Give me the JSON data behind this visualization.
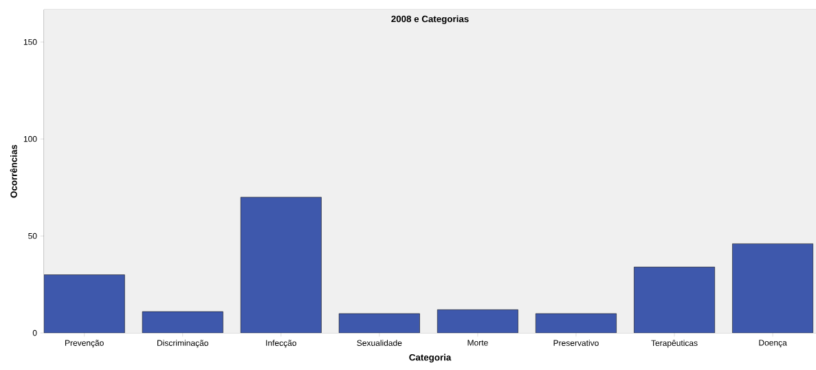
{
  "chart_data": {
    "type": "bar",
    "title": "2008 e Categorias",
    "xlabel": "Categoria",
    "ylabel": "Ocorrências",
    "categories": [
      "Prevenção",
      "Discriminação",
      "Infecção",
      "Sexualidade",
      "Morte",
      "Preservativo",
      "Terapêuticas",
      "Doença"
    ],
    "values": [
      30,
      11,
      70,
      10,
      12,
      10,
      34,
      46
    ],
    "color": "#3e58ac",
    "ylim": [
      0,
      166.7
    ],
    "yticks": [
      0,
      50,
      100,
      150
    ]
  }
}
